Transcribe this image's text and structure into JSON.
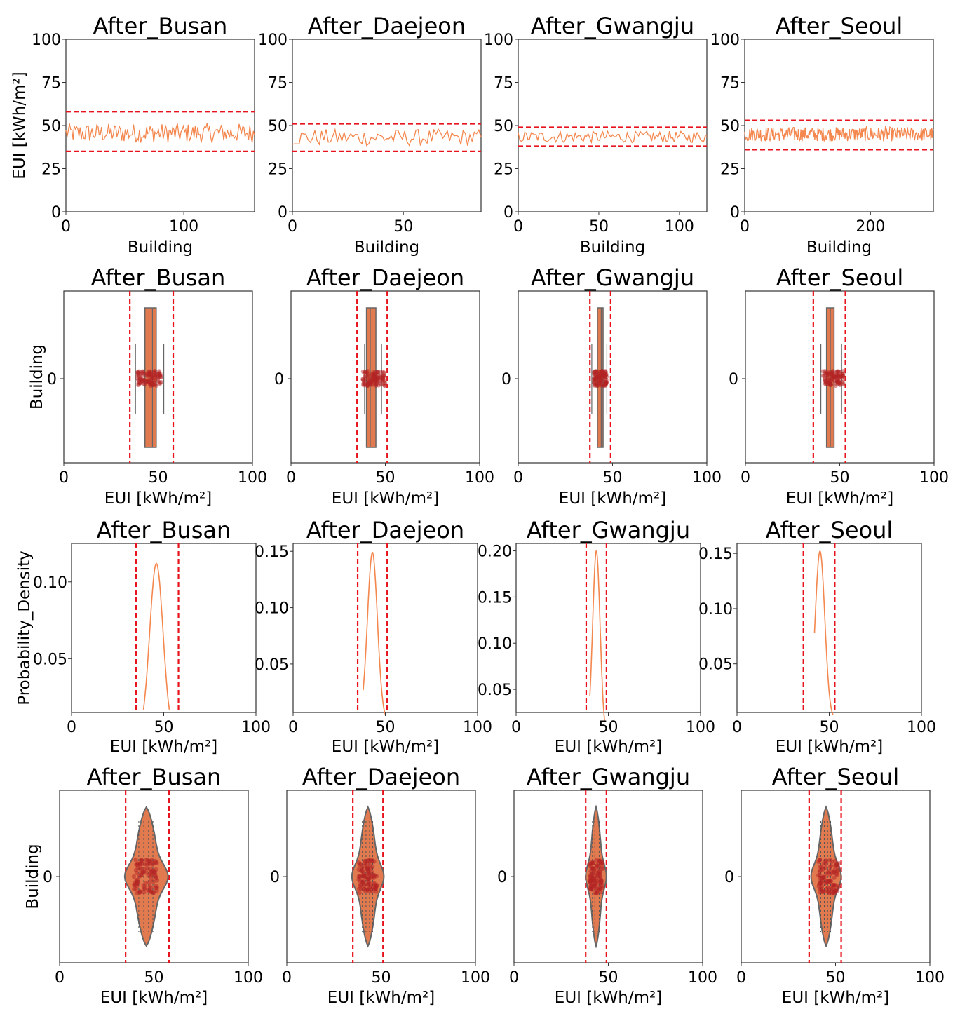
{
  "colors": {
    "line": "#f4874e",
    "limit": "#e8141d",
    "fill": "#e27a50",
    "edge": "#666666",
    "points": "#b32323"
  },
  "chart_data": [
    {
      "type": "line",
      "title": "After_Busan",
      "xlabel": "Building",
      "ylabel": "EUI [kWh/m²]",
      "xlim": [
        0,
        160
      ],
      "ylim": [
        0,
        100
      ],
      "xticks": [
        "0",
        "100"
      ],
      "yticks": [
        "0",
        "25",
        "50",
        "75",
        "100"
      ],
      "n": 160,
      "mean": 45.6,
      "spread": 4.0,
      "thresholds": [
        35,
        58
      ]
    },
    {
      "type": "line",
      "title": "After_Daejeon",
      "xlabel": "Building",
      "ylabel": "",
      "xlim": [
        0,
        85
      ],
      "ylim": [
        0,
        100
      ],
      "xticks": [
        "0",
        "50"
      ],
      "yticks": [
        "0",
        "25",
        "50",
        "75",
        "100"
      ],
      "n": 85,
      "mean": 43.0,
      "spread": 3.5,
      "thresholds": [
        35,
        51
      ]
    },
    {
      "type": "line",
      "title": "After_Gwangju",
      "xlabel": "Building",
      "ylabel": "",
      "xlim": [
        0,
        117
      ],
      "ylim": [
        0,
        100
      ],
      "xticks": [
        "0",
        "50",
        "100"
      ],
      "yticks": [
        "0",
        "25",
        "50",
        "75",
        "100"
      ],
      "n": 117,
      "mean": 43.4,
      "spread": 2.4,
      "thresholds": [
        38,
        49
      ]
    },
    {
      "type": "line",
      "title": "After_Seoul",
      "xlabel": "Building",
      "ylabel": "",
      "xlim": [
        0,
        300
      ],
      "ylim": [
        0,
        100
      ],
      "xticks": [
        "0",
        "200"
      ],
      "yticks": [
        "0",
        "25",
        "50",
        "75",
        "100"
      ],
      "n": 300,
      "mean": 45.0,
      "spread": 3.0,
      "thresholds": [
        36,
        53
      ]
    },
    {
      "type": "box",
      "title": "After_Busan",
      "xlabel": "EUI [kWh/m²]",
      "ylabel": "Building",
      "xlim": [
        0,
        100
      ],
      "xticks": [
        "0",
        "50",
        "100"
      ],
      "ytick": "0",
      "q1": 43,
      "q3": 49,
      "median": 47,
      "whisker": [
        38,
        53
      ],
      "points_range": [
        39,
        52
      ],
      "thresholds": [
        35,
        58
      ]
    },
    {
      "type": "box",
      "title": "After_Daejeon",
      "xlabel": "EUI [kWh/m²]",
      "ylabel": "",
      "xlim": [
        0,
        100
      ],
      "xticks": [
        "0",
        "50",
        "100"
      ],
      "ytick": "0",
      "q1": 40,
      "q3": 45,
      "median": 42,
      "whisker": [
        39,
        48
      ],
      "points_range": [
        38,
        50
      ],
      "thresholds": [
        35,
        51
      ]
    },
    {
      "type": "box",
      "title": "After_Gwangju",
      "xlabel": "EUI [kWh/m²]",
      "ylabel": "",
      "xlim": [
        0,
        100
      ],
      "xticks": [
        "0",
        "50",
        "100"
      ],
      "ytick": "0",
      "q1": 42,
      "q3": 45,
      "median": 44,
      "whisker": [
        39,
        47
      ],
      "points_range": [
        40,
        47
      ],
      "thresholds": [
        38,
        49
      ]
    },
    {
      "type": "box",
      "title": "After_Seoul",
      "xlabel": "EUI [kWh/m²]",
      "ylabel": "",
      "xlim": [
        0,
        100
      ],
      "xticks": [
        "0",
        "50",
        "100"
      ],
      "ytick": "0",
      "q1": 43,
      "q3": 47,
      "median": 45,
      "whisker": [
        40,
        51
      ],
      "points_range": [
        41,
        52
      ],
      "thresholds": [
        36,
        53
      ]
    },
    {
      "type": "line",
      "title": "After_Busan",
      "xlabel": "EUI [kWh/m²]",
      "ylabel": "Probability_Density",
      "xlim": [
        0,
        100
      ],
      "ylim": [
        0.015,
        0.125
      ],
      "xticks": [
        "0",
        "50",
        "100"
      ],
      "ytick_values": [
        0.05,
        0.1
      ],
      "yticks": [
        "0.05",
        "0.10"
      ],
      "curve_mean": 46.0,
      "curve_sd": 3.6,
      "curve_peak": 0.112,
      "curve_range": [
        39,
        53
      ],
      "thresholds": [
        35,
        58
      ]
    },
    {
      "type": "line",
      "title": "After_Daejeon",
      "xlabel": "EUI [kWh/m²]",
      "ylabel": "",
      "xlim": [
        0,
        100
      ],
      "ylim": [
        0.007,
        0.157
      ],
      "xticks": [
        "0",
        "50",
        "100"
      ],
      "ytick_values": [
        0.05,
        0.1,
        0.15
      ],
      "yticks": [
        "0.05",
        "0.10",
        "0.15"
      ],
      "curve_mean": 43.0,
      "curve_sd": 2.7,
      "curve_peak": 0.149,
      "curve_range": [
        38,
        50
      ],
      "thresholds": [
        35,
        51
      ]
    },
    {
      "type": "line",
      "title": "After_Gwangju",
      "xlabel": "EUI [kWh/m²]",
      "ylabel": "",
      "xlim": [
        0,
        100
      ],
      "ylim": [
        0.025,
        0.208
      ],
      "xticks": [
        "0",
        "50",
        "100"
      ],
      "ytick_values": [
        0.05,
        0.1,
        0.15,
        0.2
      ],
      "yticks": [
        "0.05",
        "0.10",
        "0.15",
        "0.20"
      ],
      "curve_mean": 43.5,
      "curve_sd": 2.0,
      "curve_peak": 0.2,
      "curve_range": [
        40,
        48
      ],
      "thresholds": [
        38,
        49
      ]
    },
    {
      "type": "line",
      "title": "After_Seoul",
      "xlabel": "EUI [kWh/m²]",
      "ylabel": "",
      "xlim": [
        0,
        100
      ],
      "ylim": [
        0.006,
        0.159
      ],
      "xticks": [
        "0",
        "50",
        "100"
      ],
      "ytick_values": [
        0.05,
        0.1,
        0.15
      ],
      "yticks": [
        "0.05",
        "0.10",
        "0.15"
      ],
      "curve_mean": 45.0,
      "curve_sd": 2.6,
      "curve_peak": 0.152,
      "curve_range": [
        42,
        52
      ],
      "thresholds": [
        36,
        53
      ]
    },
    {
      "type": "violin",
      "title": "After_Busan",
      "xlabel": "EUI [kWh/m²]",
      "ylabel": "Building",
      "xlim": [
        0,
        100
      ],
      "xticks": [
        "0",
        "50",
        "100"
      ],
      "ytick": "0",
      "center": 46,
      "halfwidth": 11.5,
      "points_range": [
        39,
        52
      ],
      "thresholds": [
        35,
        58
      ]
    },
    {
      "type": "violin",
      "title": "After_Daejeon",
      "xlabel": "EUI [kWh/m²]",
      "ylabel": "",
      "xlim": [
        0,
        100
      ],
      "xticks": [
        "0",
        "50",
        "100"
      ],
      "ytick": "0",
      "center": 43,
      "halfwidth": 8.5,
      "points_range": [
        38,
        48
      ],
      "thresholds": [
        35,
        51
      ]
    },
    {
      "type": "violin",
      "title": "After_Gwangju",
      "xlabel": "EUI [kWh/m²]",
      "ylabel": "",
      "xlim": [
        0,
        100
      ],
      "xticks": [
        "0",
        "50",
        "100"
      ],
      "ytick": "0",
      "center": 43.5,
      "halfwidth": 5.5,
      "points_range": [
        40,
        47
      ],
      "thresholds": [
        38,
        49
      ]
    },
    {
      "type": "violin",
      "title": "After_Seoul",
      "xlabel": "EUI [kWh/m²]",
      "ylabel": "",
      "xlim": [
        0,
        100
      ],
      "xticks": [
        "0",
        "50",
        "100"
      ],
      "ytick": "0",
      "center": 45,
      "halfwidth": 8,
      "points_range": [
        41,
        52
      ],
      "thresholds": [
        36,
        53
      ]
    }
  ]
}
